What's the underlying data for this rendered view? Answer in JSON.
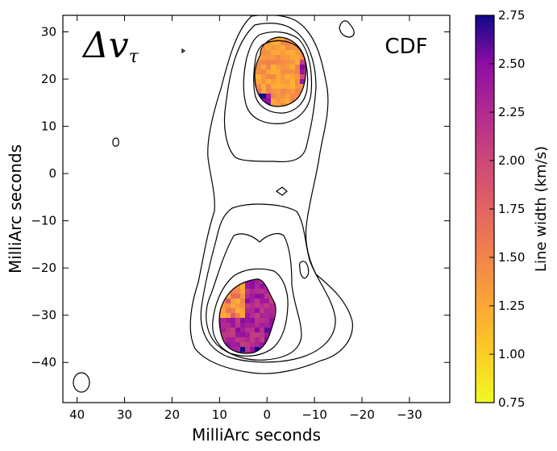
{
  "chart_data": {
    "type": "heatmap",
    "title": "",
    "xlabel": "MilliArc seconds",
    "ylabel": "MilliArc seconds",
    "xlim": [
      43,
      -38.5
    ],
    "ylim": [
      -48.5,
      33.5
    ],
    "x_ticks": [
      40,
      30,
      20,
      10,
      0,
      -10,
      -20,
      -30
    ],
    "y_ticks": [
      30,
      20,
      10,
      0,
      -10,
      -20,
      -30,
      -40
    ],
    "x_tick_labels": [
      "40",
      "30",
      "20",
      "10",
      "0",
      "−10",
      "−20",
      "−30"
    ],
    "y_tick_labels": [
      "30",
      "20",
      "10",
      "0",
      "−10",
      "−20",
      "−30",
      "−40"
    ],
    "annotations": {
      "symbol": "Δv",
      "symbol_sub": "τ",
      "label": "CDF"
    },
    "colorbar": {
      "label": "Line width (km/s)",
      "range": [
        0.75,
        2.75
      ],
      "ticks": [
        0.75,
        1.0,
        1.25,
        1.5,
        1.75,
        2.0,
        2.25,
        2.5,
        2.75
      ],
      "tick_labels": [
        "0.75",
        "1.00",
        "1.25",
        "1.50",
        "1.75",
        "2.00",
        "2.25",
        "2.50",
        "2.75"
      ],
      "colormap": "plasma_r"
    },
    "heatmap_regions": [
      {
        "name": "north-component",
        "center": [
          1.5,
          20.5
        ],
        "extent_x": [
          6.5,
          -3.5
        ],
        "extent_y": [
          13.5,
          28.5
        ],
        "typical_value": 1.35
      },
      {
        "name": "south-component",
        "center": [
          3.5,
          -31
        ],
        "extent_x": [
          10.5,
          -2.0
        ],
        "extent_y": [
          -38.5,
          -23.5
        ],
        "typical_value": 2.3
      }
    ],
    "contours_present": true,
    "grid": false
  }
}
